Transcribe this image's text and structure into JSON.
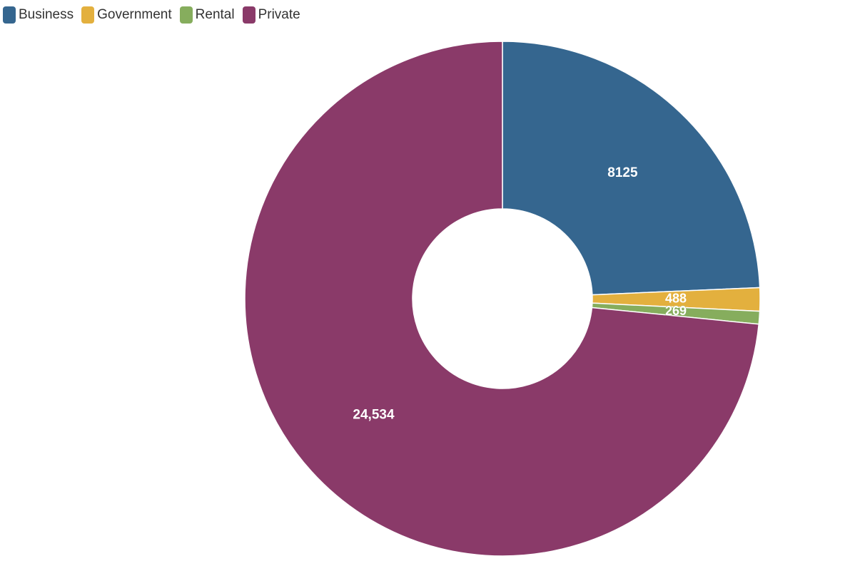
{
  "chart_data": {
    "type": "pie",
    "donut": true,
    "legend_position": "top-left",
    "title": "",
    "categories": [
      "Business",
      "Government",
      "Rental",
      "Private"
    ],
    "values": [
      8125,
      488,
      269,
      24534
    ],
    "data_labels": [
      "8125",
      "488",
      "269",
      "24,534"
    ],
    "colors": [
      "#35668f",
      "#e3b03e",
      "#86ad5d",
      "#8a3a69"
    ]
  }
}
